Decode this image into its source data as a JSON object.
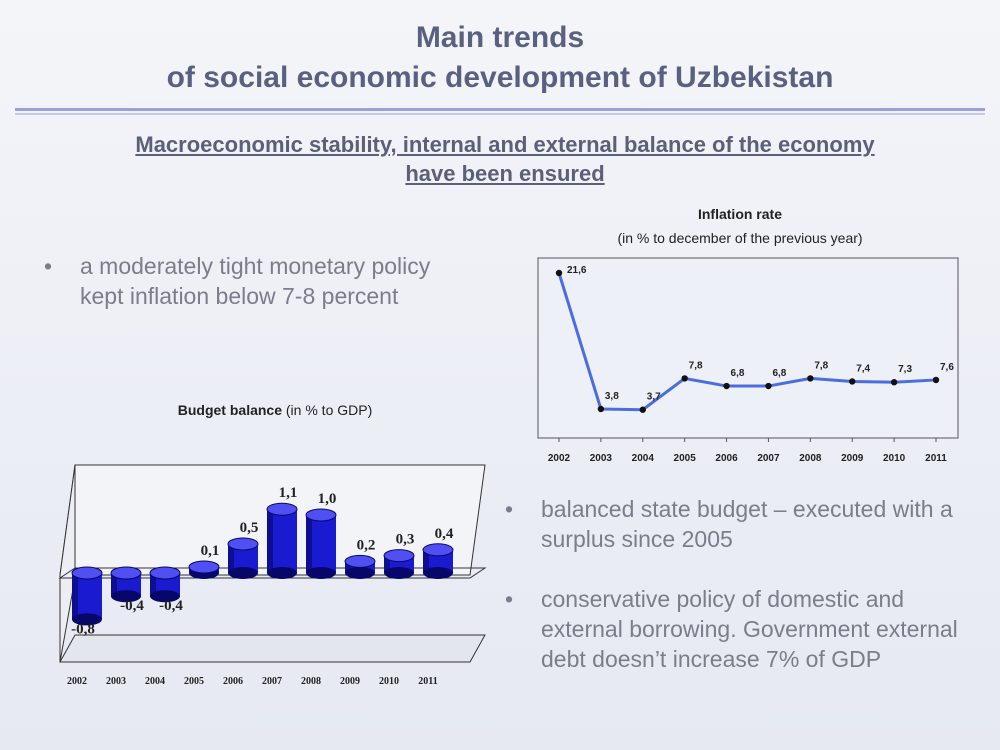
{
  "slide": {
    "title_line1": "Main trends",
    "title_line2": "of social economic development of Uzbekistan",
    "subtitle_line1": "Macroeconomic stability, internal and external balance of the economy",
    "subtitle_line2": "have been ensured",
    "bullets": [
      {
        "mark": "•",
        "text": "a moderately tight monetary policy kept inflation below 7-8 percent"
      },
      {
        "mark": "•",
        "text": "balanced state budget – executed with a surplus since 2005"
      },
      {
        "mark": "•",
        "text": "conservative policy of domestic and external borrowing. Government external debt doesn’t increase 7% of GDP"
      }
    ]
  },
  "colors": {
    "title": "#5a6080",
    "line": "#4a6ee0",
    "bar_front": "#1a1ad0",
    "bar_dark": "#07076a",
    "bar_top": "#4f4ff2"
  },
  "chart_data": [
    {
      "type": "line",
      "title": "Inflation rate",
      "subtitle": "(in % to december of the previous year)",
      "x": [
        "2002",
        "2003",
        "2004",
        "2005",
        "2006",
        "2007",
        "2008",
        "2009",
        "2010",
        "2011"
      ],
      "series": [
        {
          "values": [
            21.6,
            3.8,
            3.7,
            7.8,
            6.8,
            6.8,
            7.8,
            7.4,
            7.3,
            7.6
          ]
        }
      ],
      "data_labels": [
        "21,6",
        "3,8",
        "3,7",
        "7,8",
        "6,8",
        "6,8",
        "7,8",
        "7,4",
        "7,3",
        "7,6"
      ],
      "ylim": [
        0,
        25
      ],
      "grid": false,
      "legend": "none"
    },
    {
      "type": "bar",
      "title": "Budget balance",
      "title_note": "(in % to GDP)",
      "categories": [
        "2002",
        "2003",
        "2004",
        "2005",
        "2006",
        "2007",
        "2008",
        "2009",
        "2010",
        "2011"
      ],
      "series": [
        {
          "values": [
            -0.8,
            -0.4,
            -0.4,
            0.1,
            0.5,
            1.1,
            1.0,
            0.2,
            0.3,
            0.4
          ]
        }
      ],
      "data_labels": [
        "-0,8",
        "-0,4",
        "-0,4",
        "0,1",
        "0,5",
        "1,1",
        "1,0",
        "0,2",
        "0,3",
        "0,4"
      ],
      "ylim": [
        -0.8,
        1.1
      ],
      "grid": false,
      "legend": "none",
      "style": "3d-cylinder"
    }
  ]
}
